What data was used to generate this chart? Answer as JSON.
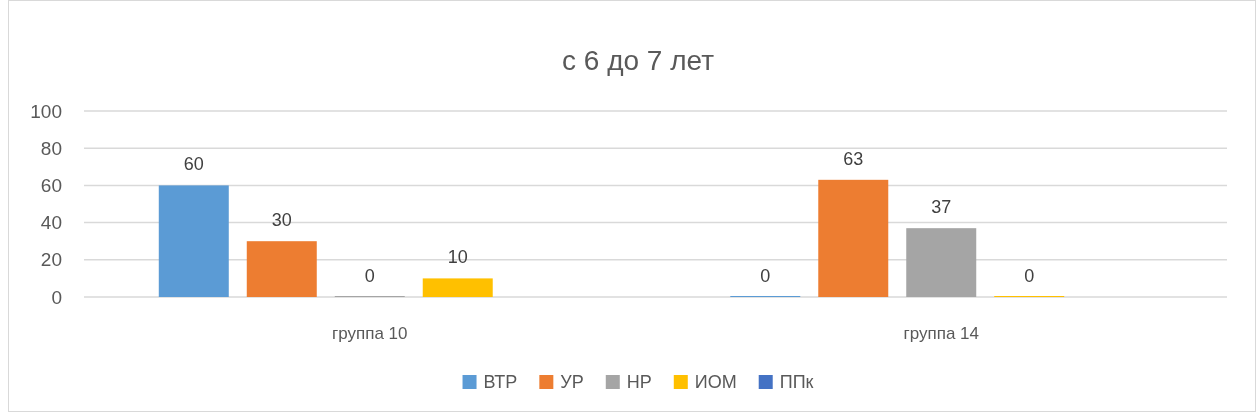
{
  "chart_data": {
    "type": "bar",
    "title": "с 6 до 7 лет",
    "categories": [
      "группа 10",
      "группа 14"
    ],
    "series": [
      {
        "name": "ВТР",
        "color": "#5b9bd5",
        "values": [
          60,
          0
        ]
      },
      {
        "name": "УР",
        "color": "#ed7d31",
        "values": [
          30,
          63
        ]
      },
      {
        "name": "НР",
        "color": "#a5a5a5",
        "values": [
          0,
          37
        ]
      },
      {
        "name": "ИОМ",
        "color": "#ffc000",
        "values": [
          10,
          0
        ]
      },
      {
        "name": "ППк",
        "color": "#4472c4",
        "values": [
          null,
          null
        ]
      }
    ],
    "ylim": [
      0,
      100
    ],
    "yticks": [
      0,
      20,
      40,
      60,
      80,
      100
    ],
    "grid": "y",
    "data_labels": true,
    "legend": "bottom"
  }
}
